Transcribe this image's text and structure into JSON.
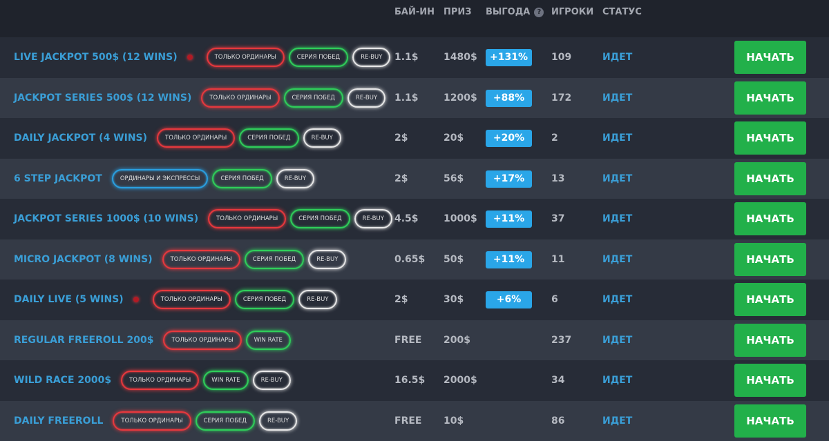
{
  "header": {
    "buyin": "БАЙ-ИН",
    "prize": "ПРИЗ",
    "profit": "ВЫГОДА",
    "help": "?",
    "players": "ИГРОКИ",
    "status": "СТАТУС"
  },
  "tag_colors": {
    "red": "#e8383d",
    "green": "#2fcf5a",
    "white": "#e8e8e8",
    "blue": "#2a9fe0"
  },
  "rows": [
    {
      "name": "LIVE JACKPOT 500$ (12 WINS)",
      "live": true,
      "tags": [
        {
          "text": "ТОЛЬКО ОРДИНАРЫ",
          "color": "red"
        },
        {
          "text": "СЕРИЯ ПОБЕД",
          "color": "green"
        },
        {
          "text": "RE-BUY",
          "color": "white"
        }
      ],
      "buyin": "1.1$",
      "prize": "1480$",
      "profit": "+131%",
      "players": "109",
      "status": "ИДЕТ",
      "button": "НАЧАТЬ"
    },
    {
      "name": "JACKPOT SERIES 500$ (12 WINS)",
      "live": false,
      "tags": [
        {
          "text": "ТОЛЬКО ОРДИНАРЫ",
          "color": "red"
        },
        {
          "text": "СЕРИЯ ПОБЕД",
          "color": "green"
        },
        {
          "text": "RE-BUY",
          "color": "white"
        }
      ],
      "buyin": "1.1$",
      "prize": "1200$",
      "profit": "+88%",
      "players": "172",
      "status": "ИДЕТ",
      "button": "НАЧАТЬ"
    },
    {
      "name": "DAILY JACKPOT (4 WINS)",
      "live": false,
      "tags": [
        {
          "text": "ТОЛЬКО ОРДИНАРЫ",
          "color": "red"
        },
        {
          "text": "СЕРИЯ ПОБЕД",
          "color": "green"
        },
        {
          "text": "RE-BUY",
          "color": "white"
        }
      ],
      "buyin": "2$",
      "prize": "20$",
      "profit": "+20%",
      "players": "2",
      "status": "ИДЕТ",
      "button": "НАЧАТЬ"
    },
    {
      "name": "6 STEP JACKPOT",
      "live": false,
      "tags": [
        {
          "text": "ОРДИНАРЫ И ЭКСПРЕССЫ",
          "color": "blue"
        },
        {
          "text": "СЕРИЯ ПОБЕД",
          "color": "green"
        },
        {
          "text": "RE-BUY",
          "color": "white"
        }
      ],
      "buyin": "2$",
      "prize": "56$",
      "profit": "+17%",
      "players": "13",
      "status": "ИДЕТ",
      "button": "НАЧАТЬ"
    },
    {
      "name": "JACKPOT SERIES 1000$ (10 WINS)",
      "live": false,
      "tags": [
        {
          "text": "ТОЛЬКО ОРДИНАРЫ",
          "color": "red"
        },
        {
          "text": "СЕРИЯ ПОБЕД",
          "color": "green"
        },
        {
          "text": "RE-BUY",
          "color": "white"
        }
      ],
      "buyin": "4.5$",
      "prize": "1000$",
      "profit": "+11%",
      "players": "37",
      "status": "ИДЕТ",
      "button": "НАЧАТЬ"
    },
    {
      "name": "MICRO JACKPOT (8 WINS)",
      "live": false,
      "tags": [
        {
          "text": "ТОЛЬКО ОРДИНАРЫ",
          "color": "red"
        },
        {
          "text": "СЕРИЯ ПОБЕД",
          "color": "green"
        },
        {
          "text": "RE-BUY",
          "color": "white"
        }
      ],
      "buyin": "0.65$",
      "prize": "50$",
      "profit": "+11%",
      "players": "11",
      "status": "ИДЕТ",
      "button": "НАЧАТЬ"
    },
    {
      "name": "DAILY LIVE (5 WINS)",
      "live": true,
      "tags": [
        {
          "text": "ТОЛЬКО ОРДИНАРЫ",
          "color": "red"
        },
        {
          "text": "СЕРИЯ ПОБЕД",
          "color": "green"
        },
        {
          "text": "RE-BUY",
          "color": "white"
        }
      ],
      "buyin": "2$",
      "prize": "30$",
      "profit": "+6%",
      "players": "6",
      "status": "ИДЕТ",
      "button": "НАЧАТЬ"
    },
    {
      "name": "REGULAR FREEROLL 200$",
      "live": false,
      "tags": [
        {
          "text": "ТОЛЬКО ОРДИНАРЫ",
          "color": "red"
        },
        {
          "text": "WIN RATE",
          "color": "green"
        }
      ],
      "buyin": "FREE",
      "prize": "200$",
      "players": "237",
      "status": "ИДЕТ",
      "button": "НАЧАТЬ"
    },
    {
      "name": "WILD RACE 2000$",
      "live": false,
      "tags": [
        {
          "text": "ТОЛЬКО ОРДИНАРЫ",
          "color": "red"
        },
        {
          "text": "WIN RATE",
          "color": "green"
        },
        {
          "text": "RE-BUY",
          "color": "white"
        }
      ],
      "buyin": "16.5$",
      "prize": "2000$",
      "players": "34",
      "status": "ИДЕТ",
      "button": "НАЧАТЬ"
    },
    {
      "name": "DAILY FREEROLL",
      "live": false,
      "tags": [
        {
          "text": "ТОЛЬКО ОРДИНАРЫ",
          "color": "red"
        },
        {
          "text": "СЕРИЯ ПОБЕД",
          "color": "green"
        },
        {
          "text": "RE-BUY",
          "color": "white"
        }
      ],
      "buyin": "FREE",
      "prize": "10$",
      "players": "86",
      "status": "ИДЕТ",
      "button": "НАЧАТЬ"
    }
  ]
}
